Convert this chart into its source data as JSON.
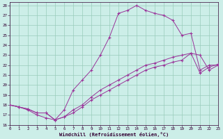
{
  "xlabel": "Windchill (Refroidissement éolien,°C)",
  "bg_color": "#cceee8",
  "grid_color": "#99ccbb",
  "line_color": "#993399",
  "xlim": [
    0,
    23
  ],
  "ylim": [
    16,
    28.3
  ],
  "xtick_vals": [
    0,
    1,
    2,
    3,
    4,
    5,
    6,
    7,
    8,
    9,
    10,
    11,
    12,
    13,
    14,
    15,
    16,
    17,
    18,
    19,
    20,
    21,
    22,
    23
  ],
  "ytick_vals": [
    16,
    17,
    18,
    19,
    20,
    21,
    22,
    23,
    24,
    25,
    26,
    27,
    28
  ],
  "curve1_x": [
    0,
    1,
    2,
    3,
    4,
    5,
    6,
    7,
    8,
    9,
    10,
    11,
    12,
    13,
    14,
    15,
    16,
    17,
    18,
    19,
    20,
    21,
    22,
    23
  ],
  "curve1_y": [
    18.0,
    17.8,
    17.5,
    17.0,
    16.7,
    16.5,
    17.5,
    19.5,
    20.5,
    21.5,
    23.0,
    24.8,
    27.2,
    27.5,
    28.0,
    27.5,
    27.2,
    27.0,
    26.5,
    25.0,
    25.2,
    21.5,
    22.0,
    22.0
  ],
  "curve2_x": [
    0,
    1,
    2,
    3,
    4,
    5,
    6,
    7,
    8,
    9,
    10,
    11,
    12,
    13,
    14,
    15,
    16,
    17,
    18,
    19,
    20,
    21,
    22,
    23
  ],
  "curve2_y": [
    18.0,
    17.8,
    17.6,
    17.2,
    17.2,
    16.5,
    16.8,
    17.2,
    17.8,
    18.5,
    19.0,
    19.5,
    20.0,
    20.5,
    21.0,
    21.5,
    21.8,
    22.0,
    22.3,
    22.5,
    23.2,
    21.2,
    21.8,
    22.1
  ],
  "curve3_x": [
    0,
    1,
    2,
    3,
    4,
    5,
    6,
    7,
    8,
    9,
    10,
    11,
    12,
    13,
    14,
    15,
    16,
    17,
    18,
    19,
    20,
    21,
    22,
    23
  ],
  "curve3_y": [
    18.0,
    17.8,
    17.6,
    17.2,
    17.2,
    16.5,
    16.8,
    17.5,
    18.0,
    18.8,
    19.5,
    20.0,
    20.5,
    21.0,
    21.5,
    22.0,
    22.2,
    22.5,
    22.8,
    23.0,
    23.2,
    23.0,
    21.5,
    22.0
  ]
}
